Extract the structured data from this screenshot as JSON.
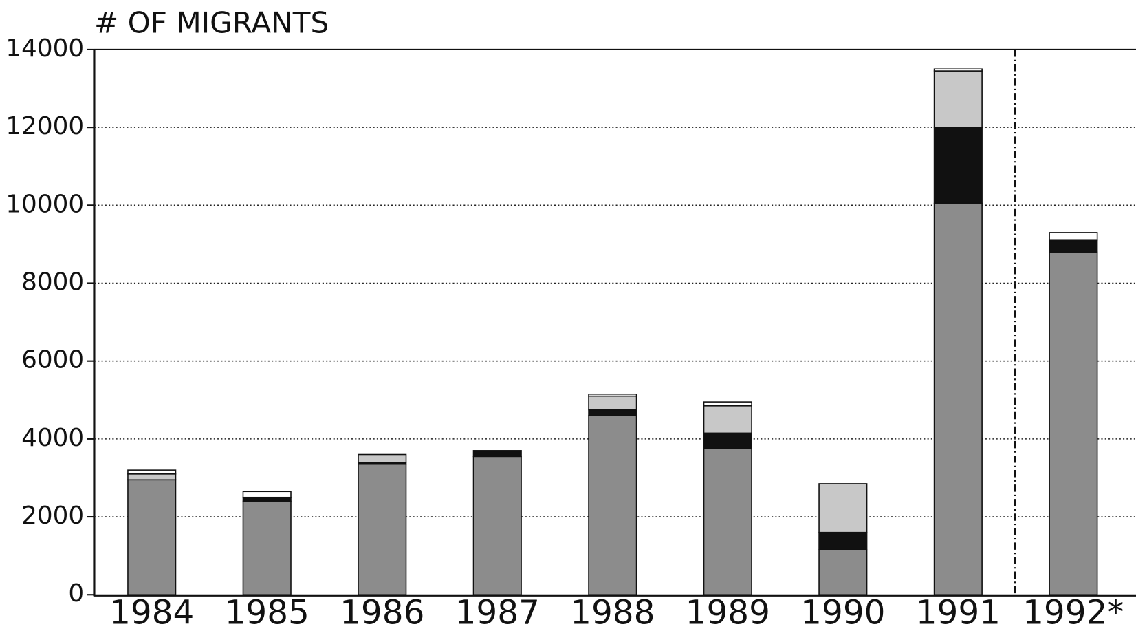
{
  "chart_data": {
    "type": "bar",
    "stacked": true,
    "title": "# OF MIGRANTS",
    "categories": [
      "1984",
      "1985",
      "1986",
      "1987",
      "1988",
      "1989",
      "1990",
      "1991",
      "1992*"
    ],
    "series": [
      {
        "color": "#8c8c8c",
        "values": [
          2950,
          2400,
          3350,
          3550,
          4600,
          3750,
          1150,
          10050,
          8800
        ]
      },
      {
        "color": "#111111",
        "values": [
          0,
          100,
          50,
          150,
          150,
          400,
          450,
          1950,
          300
        ]
      },
      {
        "color": "#c8c8c8",
        "values": [
          150,
          0,
          200,
          0,
          350,
          700,
          1250,
          1450,
          0
        ]
      },
      {
        "color": "#ffffff",
        "values": [
          100,
          150,
          0,
          0,
          50,
          100,
          0,
          50,
          200
        ]
      }
    ],
    "ylim": [
      0,
      14000
    ],
    "yticks": [
      0,
      2000,
      4000,
      6000,
      8000,
      10000,
      12000,
      14000
    ],
    "grid": true
  }
}
